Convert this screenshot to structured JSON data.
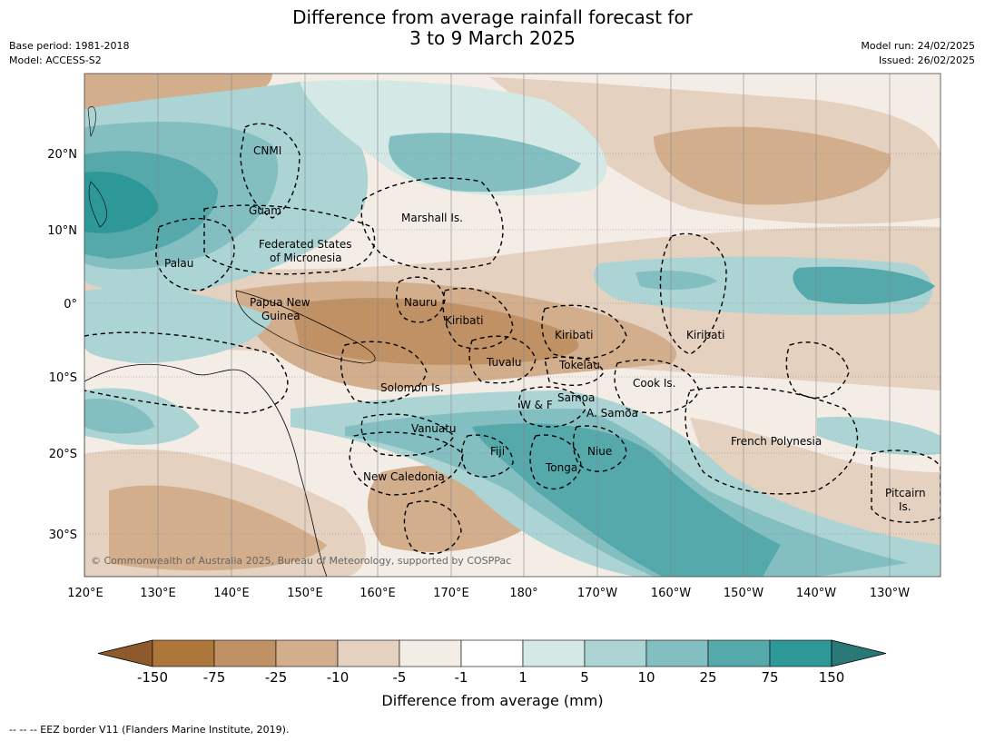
{
  "header": {
    "title_line1": "Difference from average rainfall forecast for",
    "title_line2": "3 to 9 March 2025",
    "base_period": "Base period: 1981-2018",
    "model": "Model: ACCESS-S2",
    "model_run": "Model run: 24/02/2025",
    "issued": "Issued: 26/02/2025"
  },
  "map": {
    "copyright": "© Commonwealth of Australia 2025, Bureau of Meteorology, supported by COSPPac",
    "lat_labels": [
      "20°N",
      "10°N",
      "0°",
      "10°S",
      "20°S",
      "30°S"
    ],
    "lon_labels": [
      "120°E",
      "130°E",
      "140°E",
      "150°E",
      "160°E",
      "170°E",
      "180°",
      "170°W",
      "160°W",
      "150°W",
      "140°W",
      "130°W"
    ],
    "regions": [
      "CNMI",
      "Guam",
      "Marshall Is.",
      "Federated States",
      "of Micronesia",
      "Palau",
      "Papua New",
      "Guinea",
      "Nauru",
      "Kiribati",
      "Kiribati",
      "Kiribati",
      "Tuvalu",
      "Tokelau",
      "Solomon Is.",
      "Cook Is.",
      "Samoa",
      "W & F",
      "A. Samoa",
      "Vanuatu",
      "Fiji",
      "Niue",
      "French Polynesia",
      "Tonga",
      "New Caledonia",
      "Pitcairn",
      "Is."
    ]
  },
  "colorbar": {
    "ticks": [
      "-150",
      "-75",
      "-25",
      "-10",
      "-5",
      "-1",
      "1",
      "5",
      "10",
      "25",
      "75",
      "150"
    ],
    "colors": [
      "#ad763a",
      "#bf9164",
      "#d3ae8c",
      "#e5d1bf",
      "#f4ede6",
      "#ffffff",
      "#d4e8e6",
      "#acd4d4",
      "#83bfc1",
      "#56a9ab",
      "#2e9797"
    ],
    "low_color": "#8f5a2b",
    "high_color": "#2a7777",
    "title": "Difference from average (mm)"
  },
  "legend": {
    "eez_line": "--  --  -- EEZ border V11 (Flanders Marine Institute, 2019)."
  }
}
